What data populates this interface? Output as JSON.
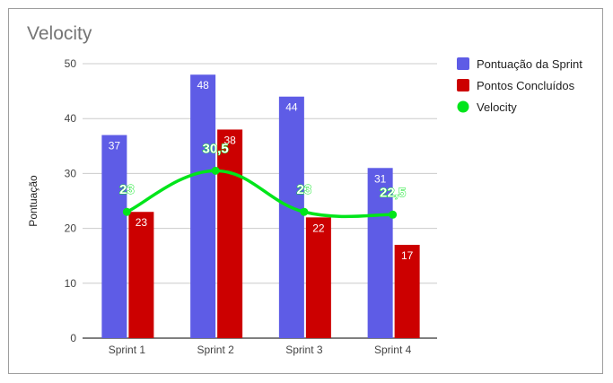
{
  "chart_data": {
    "type": "bar",
    "title": "Velocity",
    "xlabel": "",
    "ylabel": "Pontuação",
    "ylim": [
      0,
      50
    ],
    "yticks": [
      "0",
      "10",
      "20",
      "30",
      "40",
      "50"
    ],
    "categories": [
      "Sprint 1",
      "Sprint 2",
      "Sprint 3",
      "Sprint 4"
    ],
    "series": [
      {
        "name": "Pontuação da Sprint",
        "type": "bar",
        "color": "#5e5ce6",
        "values": [
          37,
          48,
          44,
          31
        ],
        "labels": [
          "37",
          "48",
          "44",
          "31"
        ]
      },
      {
        "name": "Pontos Concluídos",
        "type": "bar",
        "color": "#cc0000",
        "values": [
          23,
          38,
          22,
          17
        ],
        "labels": [
          "23",
          "38",
          "22",
          "17"
        ]
      },
      {
        "name": "Velocity",
        "type": "line",
        "color": "#00e51a",
        "values": [
          23,
          30.5,
          23,
          22.5
        ],
        "labels": [
          "23",
          "30,5",
          "23",
          "22,5"
        ]
      }
    ],
    "grid": true,
    "legend_position": "right"
  }
}
